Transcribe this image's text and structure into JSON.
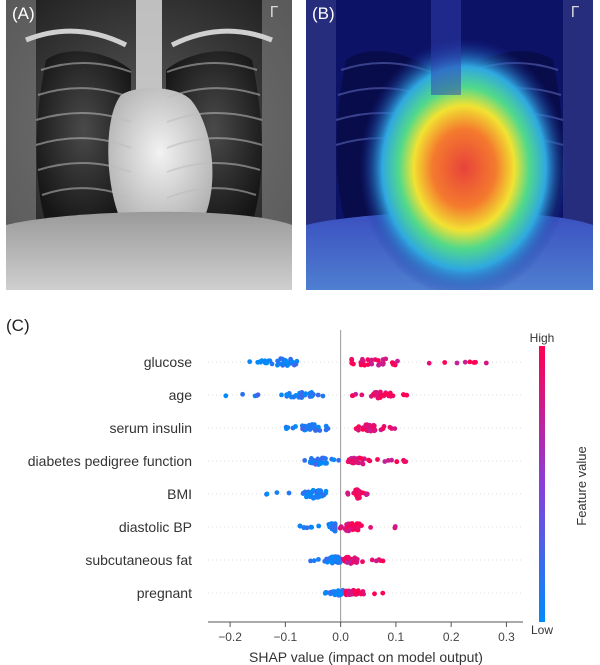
{
  "panels": {
    "a_label": "(A)",
    "b_label": "(B)",
    "c_label": "(C)",
    "xray_marker": "Γ"
  },
  "chart_data": {
    "type": "scatter",
    "subtype": "shap-beeswarm",
    "title": "",
    "xlabel": "SHAP value (impact on model output)",
    "ylabel": "",
    "xlim": [
      -0.24,
      0.33
    ],
    "xticks": [
      -0.2,
      -0.1,
      0.0,
      0.1,
      0.2,
      0.3
    ],
    "xtick_labels": [
      "−0.2",
      "−0.1",
      "0.0",
      "0.1",
      "0.2",
      "0.3"
    ],
    "grid": false,
    "colorbar": {
      "label": "Feature value",
      "high_label": "High",
      "low_label": "Low",
      "low_color": "#008bfb",
      "high_color": "#ff0052"
    },
    "features": [
      {
        "name": "glucose",
        "low_range": [
          -0.17,
          -0.07
        ],
        "low_center": -0.1,
        "high_range": [
          0.02,
          0.3
        ],
        "high_center": 0.06,
        "n": 75,
        "spread": 0.7
      },
      {
        "name": "age",
        "low_range": [
          -0.21,
          -0.02
        ],
        "low_center": -0.07,
        "high_range": [
          0.02,
          0.12
        ],
        "high_center": 0.07,
        "n": 70,
        "spread": 0.55
      },
      {
        "name": "serum insulin",
        "low_range": [
          -0.1,
          -0.01
        ],
        "low_center": -0.05,
        "high_range": [
          0.02,
          0.1
        ],
        "high_center": 0.05,
        "n": 70,
        "spread": 0.6
      },
      {
        "name": "diabetes pedigree function",
        "low_range": [
          -0.09,
          0.0
        ],
        "low_center": -0.04,
        "high_range": [
          0.0,
          0.12
        ],
        "high_center": 0.03,
        "n": 70,
        "spread": 0.6
      },
      {
        "name": "BMI",
        "low_range": [
          -0.17,
          -0.02
        ],
        "low_center": -0.05,
        "high_range": [
          0.01,
          0.05
        ],
        "high_center": 0.03,
        "n": 70,
        "spread": 0.75
      },
      {
        "name": "diastolic BP",
        "low_range": [
          -0.08,
          -0.01
        ],
        "low_center": -0.01,
        "high_range": [
          -0.01,
          0.11
        ],
        "high_center": 0.02,
        "n": 70,
        "spread": 0.7
      },
      {
        "name": "subcutaneous fat",
        "low_range": [
          -0.06,
          0.0
        ],
        "low_center": -0.01,
        "high_range": [
          0.0,
          0.08
        ],
        "high_center": 0.02,
        "n": 70,
        "spread": 0.6
      },
      {
        "name": "pregnant",
        "low_range": [
          -0.03,
          0.01
        ],
        "low_center": 0.0,
        "high_range": [
          0.01,
          0.09
        ],
        "high_center": 0.02,
        "n": 55,
        "spread": 0.55
      }
    ]
  }
}
